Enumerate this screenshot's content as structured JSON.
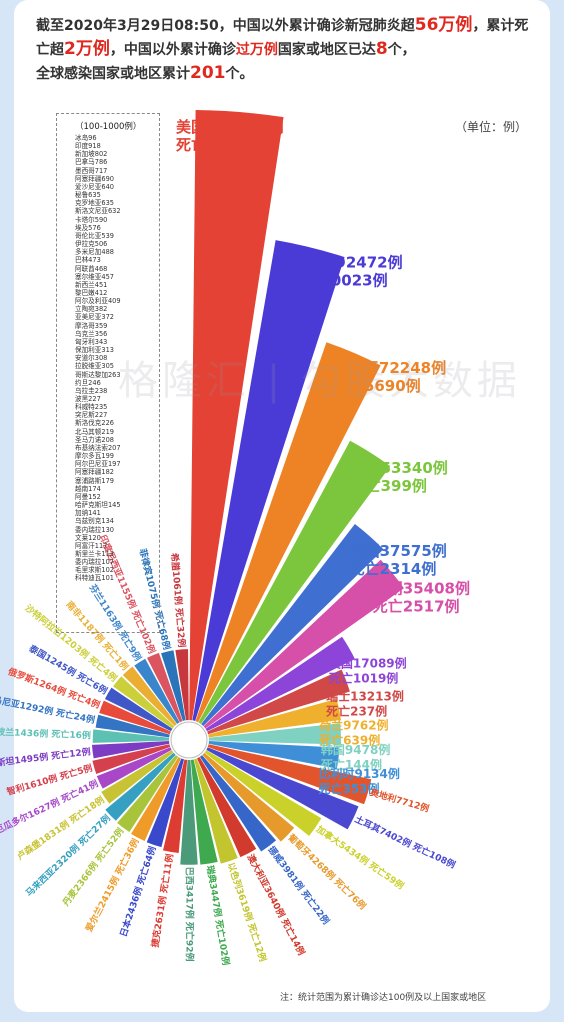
{
  "header": {
    "prefix": "截至2020年3月29日08:50，中国以外累计确诊新冠肺炎超",
    "confirmed_total": "56万例",
    "mid1": "，累计死亡超",
    "death_total": "2万例",
    "mid2": "，中国以外累计确诊",
    "over_10k_label": "过万例",
    "mid3": "国家或地区已达",
    "over_10k_count": "8",
    "mid4": "个，",
    "line3_prefix": "全球感染国家或地区累计",
    "country_total": "201",
    "line3_suffix": "个。"
  },
  "unit_label": "（单位：例）",
  "small_countries": {
    "title": "（100-1000例）",
    "items": [
      "冰岛96",
      "印度918",
      "新加坡802",
      "巴拿马786",
      "墨西哥717",
      "阿塞拜疆690",
      "爱沙尼亚640",
      "秘鲁635",
      "克罗地亚635",
      "斯洛文尼亚632",
      "卡塔尔590",
      "埃及576",
      "哥伦比亚539",
      "伊拉克506",
      "多米尼加488",
      "巴林473",
      "阿联酋468",
      "塞尔维亚457",
      "新西兰451",
      "黎巴嫩412",
      "阿尔及利亚409",
      "立陶宛382",
      "亚美尼亚372",
      "摩洛哥359",
      "乌克兰356",
      "匈牙利343",
      "保加利亚313",
      "安道尔308",
      "拉脱维亚305",
      "哥斯达黎加263",
      "约旦246",
      "乌拉圭238",
      "波黑227",
      "科威特235",
      "突尼斯227",
      "斯洛伐克226",
      "北马其顿219",
      "圣马力诺208",
      "布基纳法索207",
      "摩尔多瓦199",
      "阿尔巴尼亚197",
      "阿塞拜疆182",
      "塞浦路斯179",
      "越南174",
      "阿曼152",
      "哈萨克斯坦145",
      "加纳141",
      "乌兹别克134",
      "委内瑞拉130",
      "文莱120",
      "阿富汗117",
      "斯里兰卡113",
      "委内瑞拉107",
      "毛里求斯102",
      "科特迪瓦101"
    ]
  },
  "watermark": "格隆汇 | 勾股大数据",
  "note": "注：统计范围为累计确诊达100例及以上国家或地区",
  "chart_data": {
    "type": "bar",
    "subtype": "radial-rose",
    "unit": "例",
    "categories": [
      "美国",
      "意大利",
      "西班牙",
      "德国",
      "法国",
      "伊朗",
      "英国",
      "瑞士",
      "荷兰",
      "韩国",
      "比利时",
      "奥地利",
      "土耳其",
      "加拿大",
      "葡萄牙",
      "挪威",
      "澳大利亚",
      "以色列",
      "瑞典",
      "巴西",
      "捷克",
      "日本",
      "爱尔兰",
      "丹麦",
      "马来西亚",
      "卢森堡",
      "厄瓜多尔",
      "智利",
      "巴基斯坦",
      "波兰",
      "罗马尼亚",
      "俄罗斯",
      "泰国",
      "沙特阿拉伯",
      "南非",
      "芬兰",
      "印度尼西亚",
      "菲律宾",
      "希腊"
    ],
    "series": [
      {
        "name": "确诊",
        "values": [
          121117,
          92472,
          72248,
          53340,
          37575,
          35408,
          17089,
          13213,
          9762,
          9478,
          9134,
          7712,
          7402,
          5434,
          4268,
          3981,
          3640,
          3619,
          3447,
          3417,
          2631,
          2436,
          2415,
          2366,
          2320,
          1831,
          1627,
          1610,
          1495,
          1436,
          1292,
          1264,
          1245,
          1203,
          1187,
          1163,
          1155,
          1075,
          1061
        ]
      },
      {
        "name": "死亡",
        "values": [
          2010,
          10023,
          5690,
          399,
          2314,
          2517,
          1019,
          237,
          639,
          144,
          353,
          58,
          108,
          59,
          76,
          22,
          14,
          12,
          102,
          92,
          11,
          64,
          36,
          52,
          27,
          18,
          41,
          5,
          12,
          16,
          24,
          4,
          6,
          4,
          1,
          9,
          102,
          68,
          32
        ]
      }
    ],
    "labels": [
      "美国121117例\n死亡2010例",
      "意大利92472例\n死亡10023例",
      "西班牙72248例\n死亡5690例",
      "德国53340例\n死亡399例",
      "法国37575例\n死亡2314例",
      "伊朗35408例\n死亡2517例",
      "英国17089例\n死亡1019例",
      "瑞士13213例\n死亡237例",
      "荷兰9762例\n死亡639例",
      "韩国9478例\n死亡144例",
      "比利时9134例\n死亡353例",
      "奥地利7712例\n死亡58例",
      "土耳其7402例 死亡108例",
      "加拿大5434例 死亡59例",
      "葡萄牙4268例 死亡76例",
      "挪威3981例 死亡22例",
      "澳大利亚3640例 死亡14例",
      "以色列3619例 死亡12例",
      "瑞典3447例 死亡102例",
      "巴西3417例 死亡92例",
      "捷克2631例 死亡11例",
      "日本2436例 死亡64例",
      "爱尔兰2415例 死亡36例",
      "丹麦2366例 死亡52例",
      "马来西亚2320例 死亡27例",
      "卢森堡1831例 死亡18例",
      "厄瓜多尔1627例 死亡41例",
      "智利1610例 死亡5例",
      "巴基斯坦1495例 死亡12例",
      "波兰1436例 死亡16例",
      "罗马尼亚1292例 死亡24例",
      "俄罗斯1264例 死亡4例",
      "泰国1245例 死亡6例",
      "沙特阿拉伯1203例 死亡4例",
      "南非1187例 死亡1例",
      "芬兰1163例 死亡9例",
      "印度尼西亚1155例 死亡102例",
      "菲律宾1075例 死亡68例",
      "希腊1061例 死亡32例"
    ],
    "colors": [
      "#e34234",
      "#4b3bd6",
      "#ee8326",
      "#7cc63d",
      "#3f6fd0",
      "#d64fa8",
      "#8d44d8",
      "#d04848",
      "#efb02e",
      "#7fd1c2",
      "#3f8fd8",
      "#e2542c",
      "#4a48d1",
      "#cbd12b",
      "#e79a2c",
      "#3667c8",
      "#d23a2e",
      "#c3c52f",
      "#3ea94f",
      "#4b9a7a",
      "#dd3c33",
      "#3a49cc",
      "#ef9b29",
      "#a7c43b",
      "#36a0c2",
      "#c8c334",
      "#a848c8",
      "#d4404d",
      "#7c3cc4",
      "#5cc0b3",
      "#3474c4",
      "#e84b3c",
      "#4057c8",
      "#cbcf39",
      "#ebae33",
      "#3a86cc",
      "#db5561",
      "#2a74b9",
      "#c7373e"
    ]
  }
}
